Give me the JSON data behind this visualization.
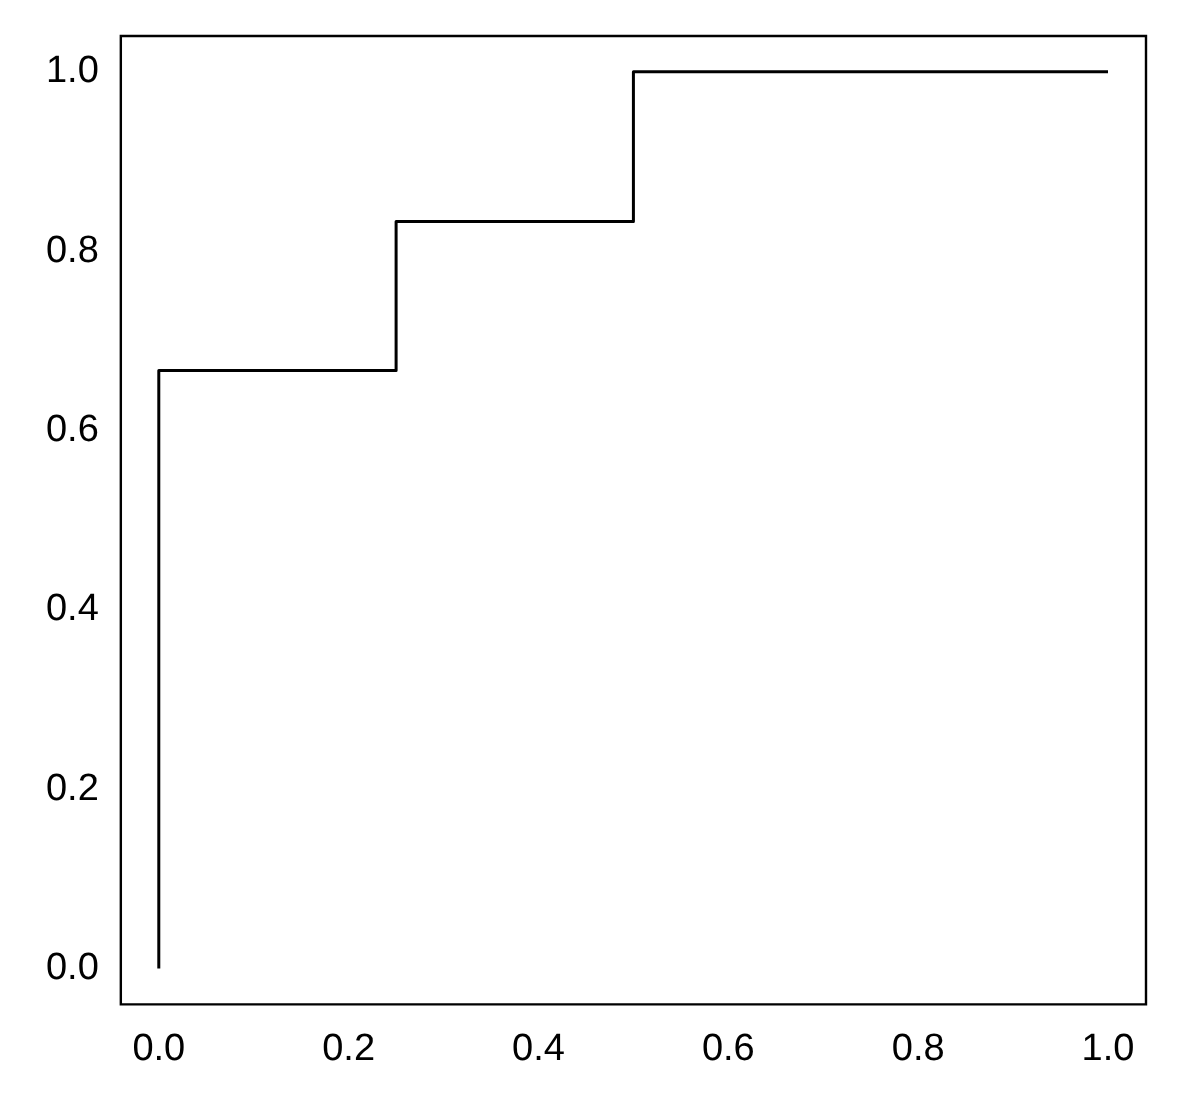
{
  "chart_data": {
    "type": "step",
    "x": [
      0,
      0,
      0.25,
      0.5,
      1
    ],
    "series": [
      {
        "color": "#000000",
        "values": [
          0,
          0.667,
          0.833,
          1,
          1
        ]
      }
    ],
    "xlim": [
      -0.04,
      1.04
    ],
    "ylim": [
      -0.04,
      1.04
    ],
    "xticks": [
      {
        "value": 0,
        "label": "0.0"
      },
      0.2,
      0.4,
      0.6,
      0.8,
      {
        "value": 1,
        "label": "1.0"
      }
    ],
    "yticks": [
      {
        "value": 0,
        "label": "0.0"
      },
      0.2,
      0.4,
      0.6,
      0.8,
      {
        "value": 1,
        "label": "1.0"
      }
    ],
    "grid": false,
    "legend": false,
    "marker": "none",
    "line_style": "solid"
  }
}
